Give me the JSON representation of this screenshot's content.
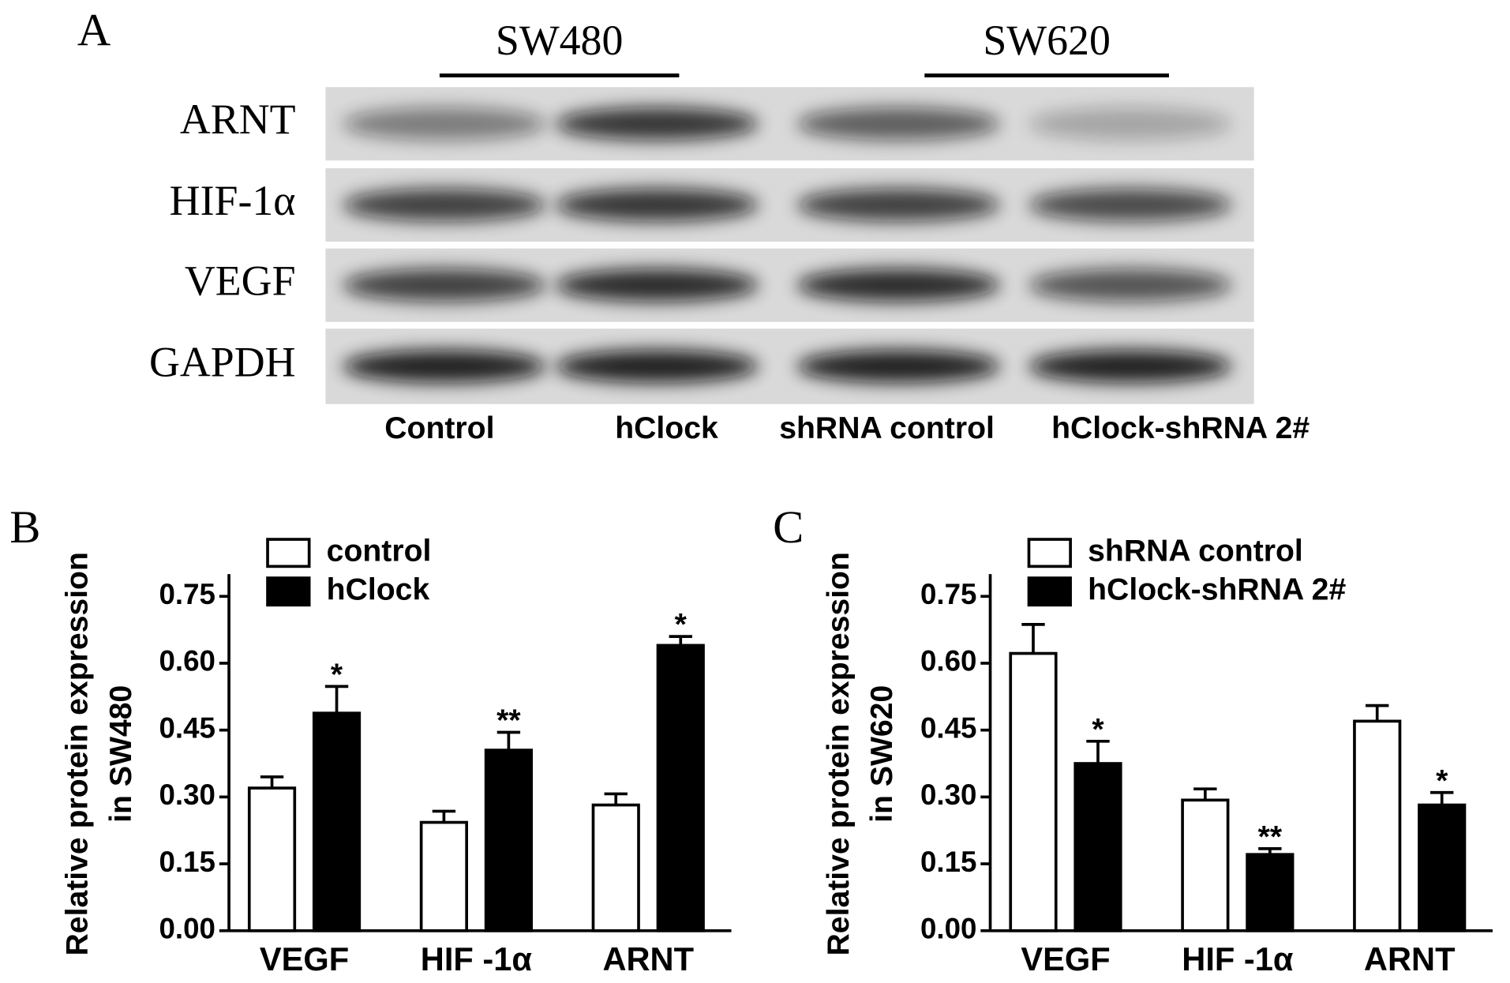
{
  "panel_a": {
    "panel_label": "A",
    "groups": [
      {
        "label": "SW480"
      },
      {
        "label": "SW620"
      }
    ],
    "rows": [
      "ARNT",
      "HIF-1α",
      "VEGF",
      "GAPDH"
    ],
    "columns": [
      "Control",
      "hClock",
      "shRNA control",
      "hClock-shRNA 2#"
    ]
  },
  "chart_data": [
    {
      "type": "bar",
      "panel_label": "B",
      "y_label": [
        "Relative protein expression",
        "in SW480"
      ],
      "categories": [
        "VEGF",
        "HIF -1α",
        "ARNT"
      ],
      "series": [
        {
          "name": "control",
          "color": "#ffffff",
          "values": [
            0.32,
            0.243,
            0.282
          ],
          "errors": [
            0.025,
            0.025,
            0.025
          ]
        },
        {
          "name": "hClock",
          "color": "#000000",
          "values": [
            0.488,
            0.405,
            0.64
          ],
          "errors": [
            0.06,
            0.04,
            0.02
          ],
          "significance": [
            "*",
            "**",
            "*"
          ]
        }
      ],
      "ylim": [
        0,
        0.8
      ],
      "yticks": [
        {
          "value": 0,
          "label": "0.00"
        },
        {
          "value": 0.15,
          "label": "0.15"
        },
        {
          "value": 0.3,
          "label": "0.30"
        },
        {
          "value": 0.45,
          "label": "0.45"
        },
        {
          "value": 0.6,
          "label": "0.60"
        },
        {
          "value": 0.75,
          "label": "0.75"
        }
      ]
    },
    {
      "type": "bar",
      "panel_label": "C",
      "y_label": [
        "Relative protein expression",
        "in SW620"
      ],
      "categories": [
        "VEGF",
        "HIF -1α",
        "ARNT"
      ],
      "series": [
        {
          "name": "shRNA control",
          "color": "#ffffff",
          "values": [
            0.622,
            0.293,
            0.47
          ],
          "errors": [
            0.065,
            0.025,
            0.035
          ]
        },
        {
          "name": "hClock-shRNA 2#",
          "color": "#000000",
          "values": [
            0.375,
            0.171,
            0.282
          ],
          "errors": [
            0.05,
            0.013,
            0.028
          ],
          "significance": [
            "*",
            "**",
            "*"
          ]
        }
      ],
      "ylim": [
        0,
        0.8
      ],
      "yticks": [
        {
          "value": 0,
          "label": "0.00"
        },
        {
          "value": 0.15,
          "label": "0.15"
        },
        {
          "value": 0.3,
          "label": "0.30"
        },
        {
          "value": 0.45,
          "label": "0.45"
        },
        {
          "value": 0.6,
          "label": "0.60"
        },
        {
          "value": 0.75,
          "label": "0.75"
        }
      ]
    }
  ]
}
